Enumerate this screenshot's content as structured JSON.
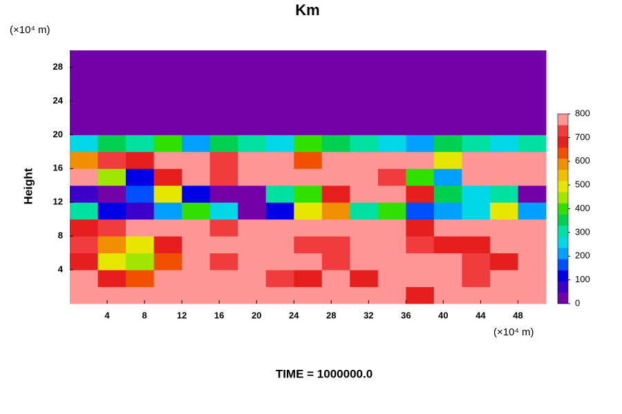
{
  "chart_data": {
    "type": "heatmap",
    "title": "Km",
    "ylabel": "Height",
    "xunit": "(×10⁴ m)",
    "yunit": "(×10⁴ m)",
    "footer": "TIME = 1000000.0",
    "xlim": [
      0,
      51
    ],
    "ylim": [
      0,
      30
    ],
    "xticks": [
      4,
      8,
      12,
      16,
      20,
      24,
      28,
      32,
      36,
      40,
      44,
      48
    ],
    "yticks": [
      4,
      8,
      12,
      16,
      20,
      24,
      28
    ],
    "clim": [
      0,
      800
    ],
    "cticks": [
      0,
      100,
      200,
      300,
      400,
      500,
      600,
      700,
      800
    ],
    "colorscale": [
      "#7400a8",
      "#3c00c8",
      "#0000e6",
      "#0050ff",
      "#00a0ff",
      "#00d8e8",
      "#00e0a0",
      "#00d050",
      "#30e000",
      "#a0e600",
      "#e6e600",
      "#f0c000",
      "#f09000",
      "#f05000",
      "#e61e1e",
      "#f03c3c",
      "#ff9696"
    ],
    "z": [
      [
        800,
        800,
        800,
        800,
        800,
        800,
        800,
        800,
        800,
        800,
        800,
        800,
        700,
        800,
        800,
        800,
        800
      ],
      [
        800,
        700,
        650,
        800,
        800,
        800,
        800,
        750,
        700,
        800,
        700,
        800,
        800,
        800,
        750,
        800,
        800
      ],
      [
        700,
        500,
        450,
        650,
        800,
        750,
        800,
        800,
        800,
        750,
        800,
        800,
        800,
        800,
        750,
        700,
        800
      ],
      [
        750,
        600,
        500,
        700,
        800,
        800,
        800,
        800,
        750,
        750,
        800,
        800,
        750,
        700,
        700,
        800,
        800
      ],
      [
        700,
        750,
        800,
        800,
        800,
        750,
        800,
        800,
        800,
        800,
        800,
        800,
        700,
        800,
        800,
        800,
        800
      ],
      [
        300,
        100,
        50,
        200,
        400,
        250,
        0,
        100,
        500,
        600,
        300,
        400,
        150,
        200,
        250,
        500,
        200
      ],
      [
        50,
        0,
        150,
        500,
        100,
        0,
        0,
        300,
        400,
        700,
        800,
        800,
        700,
        350,
        250,
        300,
        0
      ],
      [
        800,
        450,
        100,
        700,
        800,
        750,
        800,
        800,
        800,
        800,
        800,
        750,
        400,
        200,
        800,
        800,
        800
      ],
      [
        600,
        750,
        700,
        800,
        800,
        750,
        800,
        800,
        650,
        800,
        800,
        800,
        800,
        500,
        800,
        800,
        800
      ],
      [
        250,
        350,
        300,
        400,
        200,
        350,
        300,
        250,
        400,
        350,
        300,
        250,
        200,
        350,
        300,
        250,
        300
      ],
      [
        0,
        0,
        0,
        0,
        0,
        0,
        0,
        0,
        0,
        0,
        0,
        0,
        0,
        0,
        0,
        0,
        0
      ],
      [
        0,
        0,
        0,
        0,
        0,
        0,
        0,
        0,
        0,
        0,
        0,
        0,
        0,
        0,
        0,
        0,
        0
      ],
      [
        0,
        0,
        0,
        0,
        0,
        0,
        0,
        0,
        0,
        0,
        0,
        0,
        0,
        0,
        0,
        0,
        0
      ],
      [
        0,
        0,
        0,
        0,
        0,
        0,
        0,
        0,
        0,
        0,
        0,
        0,
        0,
        0,
        0,
        0,
        0
      ],
      [
        0,
        0,
        0,
        0,
        0,
        0,
        0,
        0,
        0,
        0,
        0,
        0,
        0,
        0,
        0,
        0,
        0
      ]
    ]
  }
}
